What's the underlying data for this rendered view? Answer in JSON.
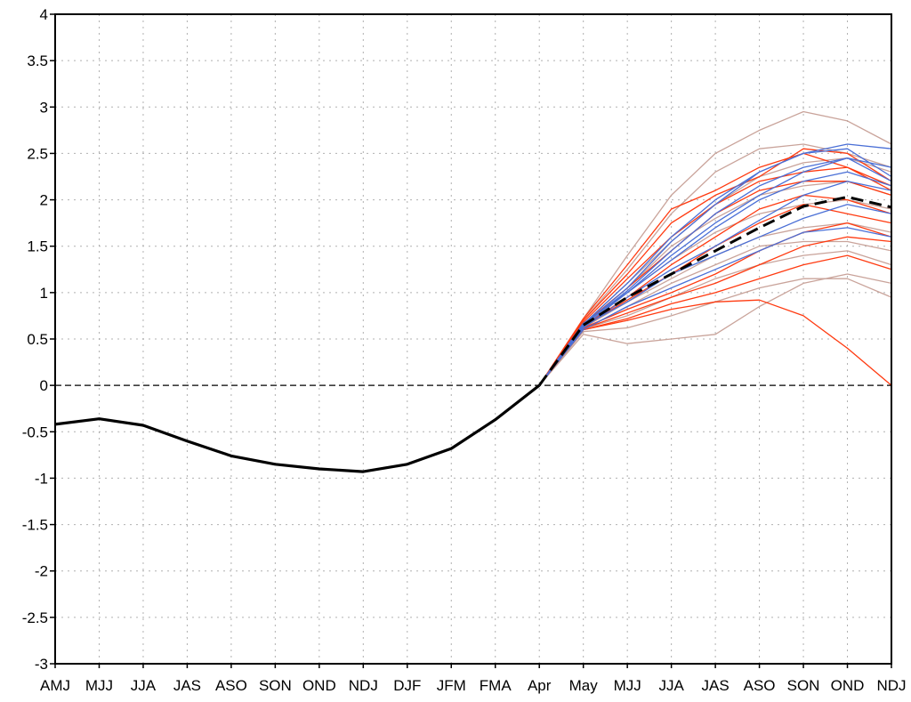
{
  "chart_data": {
    "type": "line",
    "title": "",
    "xlabel": "",
    "ylabel": "",
    "ylim": [
      -3,
      4
    ],
    "yticks": [
      {
        "value": 4,
        "label": "4"
      },
      {
        "value": 3.5,
        "label": "3.5"
      },
      {
        "value": 3,
        "label": "3"
      },
      {
        "value": 2.5,
        "label": "2.5"
      },
      {
        "value": 2,
        "label": "2"
      },
      {
        "value": 1.5,
        "label": "1.5"
      },
      {
        "value": 1,
        "label": "1"
      },
      {
        "value": 0.5,
        "label": "0.5"
      },
      {
        "value": 0,
        "label": "0"
      },
      {
        "value": -0.5,
        "label": "-0.5"
      },
      {
        "value": -1,
        "label": "-1"
      },
      {
        "value": -1.5,
        "label": "-1.5"
      },
      {
        "value": -2,
        "label": "-2"
      },
      {
        "value": -2.5,
        "label": "-2.5"
      },
      {
        "value": -3,
        "label": "-3"
      }
    ],
    "categories": [
      "AMJ",
      "MJJ",
      "JJA",
      "JAS",
      "ASO",
      "SON",
      "OND",
      "NDJ",
      "DJF",
      "JFM",
      "FMA",
      "Apr",
      "May",
      "MJJ",
      "JJA",
      "JAS",
      "ASO",
      "SON",
      "OND",
      "NDJ"
    ],
    "grid": true,
    "legend": "none",
    "reference_line": {
      "y": 0,
      "style": "dashed",
      "color": "#000000"
    },
    "observed": {
      "color": "#000000",
      "values": [
        -0.42,
        -0.36,
        -0.43,
        -0.6,
        -0.76,
        -0.85,
        -0.9,
        -0.93,
        -0.85,
        -0.68,
        -0.37,
        0.0
      ]
    },
    "ensemble_mean": {
      "color": "#000000",
      "style": "dashed",
      "values": [
        0.0,
        0.65,
        0.95,
        1.2,
        1.45,
        1.7,
        1.93,
        2.03,
        1.92
      ]
    },
    "members": [
      {
        "color": "#4a6fd6",
        "values": [
          0.0,
          0.65,
          1.05,
          1.55,
          1.95,
          2.3,
          2.5,
          2.6,
          2.55
        ]
      },
      {
        "color": "#4a6fd6",
        "values": [
          0.0,
          0.63,
          1.0,
          1.4,
          1.75,
          2.05,
          2.3,
          2.45,
          2.35
        ]
      },
      {
        "color": "#4a6fd6",
        "values": [
          0.0,
          0.66,
          1.1,
          1.6,
          2.0,
          2.3,
          2.5,
          2.55,
          2.25
        ]
      },
      {
        "color": "#4a6fd6",
        "values": [
          0.0,
          0.62,
          0.95,
          1.25,
          1.5,
          1.78,
          2.05,
          2.2,
          2.1
        ]
      },
      {
        "color": "#4a6fd6",
        "values": [
          0.0,
          0.64,
          0.9,
          1.2,
          1.4,
          1.6,
          1.8,
          1.95,
          1.85
        ]
      },
      {
        "color": "#4a6fd6",
        "values": [
          0.0,
          0.6,
          0.85,
          1.05,
          1.25,
          1.45,
          1.65,
          1.7,
          1.6
        ]
      },
      {
        "color": "#4a6fd6",
        "values": [
          0.0,
          0.67,
          1.0,
          1.35,
          1.7,
          2.0,
          2.2,
          2.3,
          2.15
        ]
      },
      {
        "color": "#4a6fd6",
        "values": [
          0.0,
          0.65,
          1.02,
          1.45,
          1.85,
          2.15,
          2.35,
          2.45,
          2.2
        ]
      },
      {
        "color": "#ff3a10",
        "values": [
          0.0,
          0.7,
          1.2,
          1.75,
          2.05,
          2.25,
          2.55,
          2.5,
          2.2
        ]
      },
      {
        "color": "#ff3a10",
        "values": [
          0.0,
          0.68,
          1.15,
          1.6,
          1.95,
          2.2,
          2.3,
          2.35,
          2.1
        ]
      },
      {
        "color": "#ff3a10",
        "values": [
          0.0,
          0.66,
          1.05,
          1.45,
          1.85,
          2.1,
          2.2,
          2.2,
          2.05
        ]
      },
      {
        "color": "#ff3a10",
        "values": [
          0.0,
          0.64,
          0.95,
          1.3,
          1.6,
          1.9,
          2.05,
          2.0,
          1.85
        ]
      },
      {
        "color": "#ff3a10",
        "values": [
          0.0,
          0.62,
          0.82,
          1.0,
          1.2,
          1.45,
          1.65,
          1.75,
          1.6
        ]
      },
      {
        "color": "#ff3a10",
        "values": [
          0.0,
          0.6,
          0.72,
          0.88,
          1.0,
          1.15,
          1.3,
          1.4,
          1.25
        ]
      },
      {
        "color": "#ff3a10",
        "values": [
          0.0,
          0.6,
          0.7,
          0.82,
          0.9,
          0.92,
          0.75,
          0.4,
          0.0
        ]
      },
      {
        "color": "#ff3a10",
        "values": [
          0.0,
          0.63,
          0.92,
          1.2,
          1.5,
          1.75,
          1.95,
          1.85,
          1.75
        ]
      },
      {
        "color": "#ff3a10",
        "values": [
          0.0,
          0.61,
          0.78,
          0.95,
          1.1,
          1.3,
          1.5,
          1.6,
          1.55
        ]
      },
      {
        "color": "#ff3a10",
        "values": [
          0.0,
          0.72,
          1.3,
          1.9,
          2.1,
          2.35,
          2.5,
          2.35,
          2.15
        ]
      },
      {
        "color": "#c9a39a",
        "values": [
          0.0,
          0.72,
          1.4,
          2.05,
          2.5,
          2.75,
          2.95,
          2.85,
          2.6
        ]
      },
      {
        "color": "#c9a39a",
        "values": [
          0.0,
          0.55,
          0.45,
          0.5,
          0.55,
          0.85,
          1.1,
          1.2,
          1.1
        ]
      },
      {
        "color": "#c9a39a",
        "values": [
          0.0,
          0.58,
          0.62,
          0.75,
          0.9,
          1.05,
          1.15,
          1.15,
          0.95
        ]
      },
      {
        "color": "#c9a39a",
        "values": [
          0.0,
          0.7,
          1.25,
          1.85,
          2.3,
          2.55,
          2.6,
          2.5,
          2.35
        ]
      },
      {
        "color": "#c9a39a",
        "values": [
          0.0,
          0.64,
          1.0,
          1.35,
          1.65,
          1.85,
          1.95,
          2.0,
          1.9
        ]
      },
      {
        "color": "#c9a39a",
        "values": [
          0.0,
          0.62,
          0.9,
          1.15,
          1.4,
          1.6,
          1.7,
          1.75,
          1.65
        ]
      },
      {
        "color": "#c9a39a",
        "values": [
          0.0,
          0.65,
          1.05,
          1.5,
          1.8,
          2.05,
          2.15,
          2.2,
          2.05
        ]
      },
      {
        "color": "#c9a39a",
        "values": [
          0.0,
          0.6,
          0.85,
          1.1,
          1.3,
          1.5,
          1.55,
          1.55,
          1.45
        ]
      },
      {
        "color": "#c9a39a",
        "values": [
          0.0,
          0.66,
          1.1,
          1.55,
          1.95,
          2.25,
          2.4,
          2.45,
          2.3
        ]
      },
      {
        "color": "#c9a39a",
        "values": [
          0.0,
          0.61,
          0.75,
          0.95,
          1.15,
          1.3,
          1.4,
          1.45,
          1.3
        ]
      }
    ]
  }
}
